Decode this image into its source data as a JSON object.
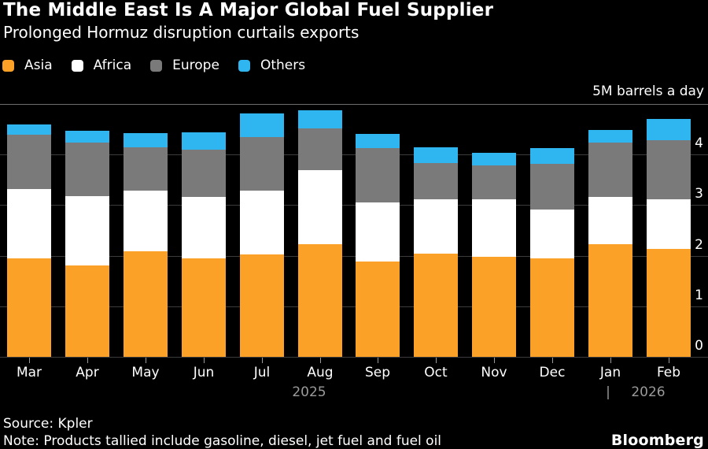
{
  "chart_data": {
    "type": "bar",
    "stacked": true,
    "title": "The Middle East Is A Major Global Fuel Supplier",
    "subtitle": "Prolonged Hormuz disruption curtails exports",
    "y_unit_label": "5M barrels a day",
    "ylabel": "Million barrels a day",
    "ylim": [
      0,
      5
    ],
    "yticks": [
      0,
      1,
      2,
      3,
      4
    ],
    "grid": true,
    "legend_position": "top-left",
    "categories": [
      "Mar",
      "Apr",
      "May",
      "Jun",
      "Jul",
      "Aug",
      "Sep",
      "Oct",
      "Nov",
      "Dec",
      "Jan",
      "Feb"
    ],
    "year_labels": [
      {
        "text": "2025",
        "under": "Aug"
      },
      {
        "text": "|",
        "under": "Jan"
      },
      {
        "text": "2026",
        "under": "Feb"
      }
    ],
    "series": [
      {
        "name": "Asia",
        "color": "#FCA128",
        "values": [
          1.95,
          1.81,
          2.08,
          1.95,
          2.03,
          2.23,
          1.88,
          2.04,
          1.98,
          1.95,
          2.22,
          2.13
        ]
      },
      {
        "name": "Africa",
        "color": "#FFFFFF",
        "values": [
          1.36,
          1.36,
          1.2,
          1.21,
          1.26,
          1.46,
          1.18,
          1.08,
          1.13,
          0.97,
          0.94,
          0.98
        ]
      },
      {
        "name": "Europe",
        "color": "#7A7A7A",
        "values": [
          1.08,
          1.06,
          0.86,
          0.94,
          1.06,
          0.82,
          1.07,
          0.71,
          0.68,
          0.9,
          1.08,
          1.18
        ]
      },
      {
        "name": "Others",
        "color": "#2FB5F0",
        "values": [
          0.2,
          0.24,
          0.28,
          0.34,
          0.47,
          0.37,
          0.28,
          0.32,
          0.25,
          0.3,
          0.25,
          0.42
        ]
      }
    ]
  },
  "footer": {
    "source": "Source: Kpler",
    "note": "Note: Products tallied include gasoline, diesel, jet fuel and fuel oil",
    "brand": "Bloomberg"
  }
}
